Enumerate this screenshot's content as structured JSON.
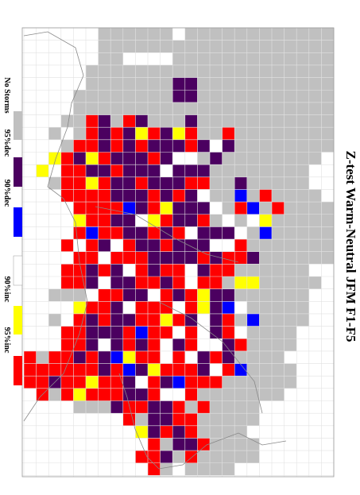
{
  "title": "Z-test Warm-Neutral JFM F1-F5",
  "legend": {
    "labels": [
      "No Storms",
      "95%dec",
      "90%dec",
      "90%inc",
      "95%inc"
    ]
  }
}
